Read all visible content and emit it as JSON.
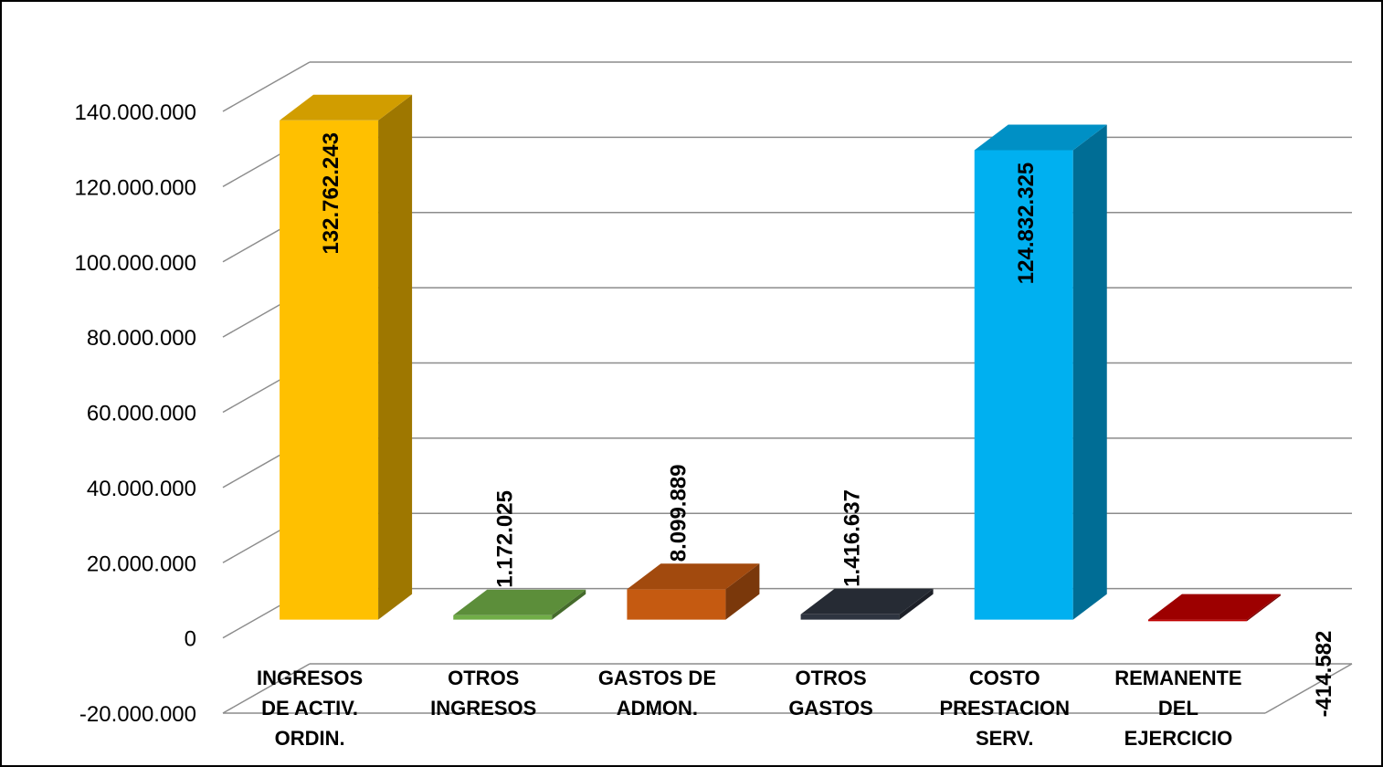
{
  "chart_data": {
    "type": "bar",
    "style": "3d-column",
    "title": "",
    "xlabel": "",
    "ylabel": "",
    "ylim": [
      -20000000,
      140000000
    ],
    "grid": true,
    "legend": "none",
    "ytick_labels": [
      "-20.000.000",
      "0",
      "20.000.000",
      "40.000.000",
      "60.000.000",
      "80.000.000",
      "100.000.000",
      "120.000.000",
      "140.000.000"
    ],
    "categories": [
      [
        "INGRESOS",
        "DE ACTIV.",
        "ORDIN."
      ],
      [
        "OTROS",
        "INGRESOS"
      ],
      [
        "GASTOS DE",
        "ADMON."
      ],
      [
        "OTROS",
        "GASTOS"
      ],
      [
        "COSTO",
        "PRESTACION",
        "SERV."
      ],
      [
        "REMANENTE",
        "DEL",
        "EJERCICIO"
      ]
    ],
    "values": [
      132762243,
      1172025,
      8099889,
      1416637,
      124832325,
      -414582
    ],
    "data_labels": [
      "132.762.243",
      "1.172.025",
      "8.099.889",
      "1.416.637",
      "124.832.325",
      "-414.582"
    ],
    "colors": [
      "#FFC000",
      "#70AD47",
      "#C55A11",
      "#2E3440",
      "#00B0F0",
      "#C00000"
    ]
  }
}
